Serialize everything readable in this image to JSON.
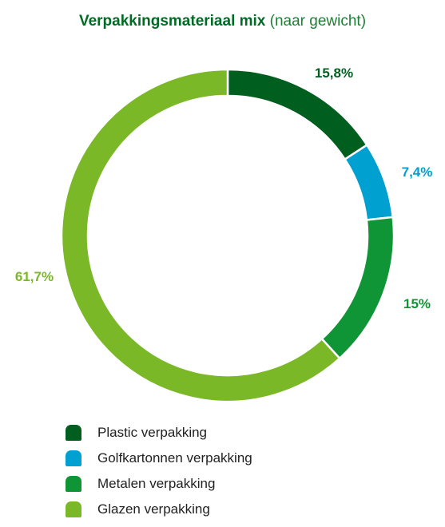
{
  "title": {
    "bold": "Verpakkingsmateriaal mix",
    "light": "(naar gewicht)"
  },
  "chart_data": {
    "type": "pie",
    "title": "Verpakkingsmateriaal mix (naar gewicht)",
    "donut": true,
    "start": "top, clockwise",
    "slices": [
      {
        "name": "Plastic verpakking",
        "value": 15.8,
        "label": "15,8%",
        "color": "#005e1f"
      },
      {
        "name": "Golfkartonnen verpakking",
        "value": 7.4,
        "label": "7,4%",
        "color": "#00a0d1"
      },
      {
        "name": "Metalen verpakking",
        "value": 15.0,
        "label": "15%",
        "color": "#0f9535"
      },
      {
        "name": "Glazen verpakking",
        "value": 61.7,
        "label": "61,7%",
        "color": "#7ab827"
      }
    ],
    "label_colors": [
      "#005e1f",
      "#00a0d1",
      "#0f9535",
      "#7ab827"
    ]
  },
  "legend": [
    {
      "label": "Plastic verpakking",
      "color": "#005e1f"
    },
    {
      "label": "Golfkartonnen verpakking",
      "color": "#00a0d1"
    },
    {
      "label": "Metalen verpakking",
      "color": "#0f9535"
    },
    {
      "label": "Glazen verpakking",
      "color": "#7ab827"
    }
  ]
}
